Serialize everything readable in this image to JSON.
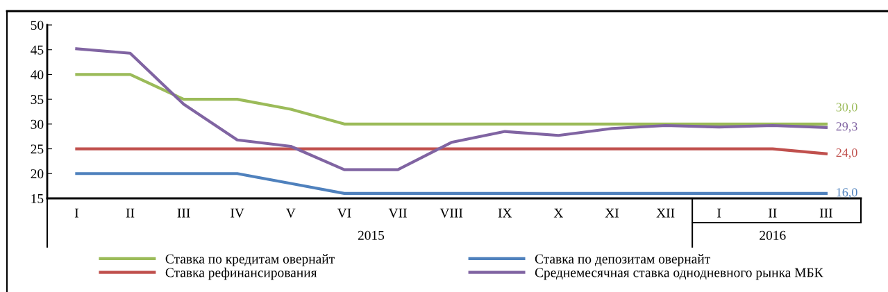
{
  "chart_data": {
    "type": "line",
    "categories": [
      "I",
      "II",
      "III",
      "IV",
      "V",
      "VI",
      "VII",
      "VIII",
      "IX",
      "X",
      "XI",
      "XII",
      "I",
      "II",
      "III"
    ],
    "series": [
      {
        "name": "Ставка по кредитам овернайт",
        "color": "#9bbb59",
        "values": [
          40,
          40,
          35,
          35,
          33,
          30,
          30,
          30,
          30,
          30,
          30,
          30,
          30,
          30,
          30
        ],
        "value_labels": [
          null,
          null,
          null,
          null,
          null,
          null,
          null,
          null,
          null,
          null,
          null,
          null,
          null,
          null,
          "30,0"
        ]
      },
      {
        "name": "Ставка рефинансирования",
        "color": "#c0504d",
        "values": [
          25,
          25,
          25,
          25,
          25,
          25,
          25,
          25,
          25,
          25,
          25,
          25,
          25,
          25,
          24
        ],
        "value_labels": [
          null,
          null,
          null,
          null,
          null,
          null,
          null,
          null,
          null,
          null,
          null,
          null,
          null,
          null,
          "24,0"
        ]
      },
      {
        "name": "Ставка по депозитам овернайт",
        "color": "#4f81bd",
        "values": [
          20,
          20,
          20,
          20,
          18,
          16,
          16,
          16,
          16,
          16,
          16,
          16,
          16,
          16,
          16
        ],
        "value_labels": [
          null,
          null,
          null,
          null,
          null,
          null,
          null,
          null,
          null,
          null,
          null,
          null,
          null,
          null,
          "16,0"
        ]
      },
      {
        "name": "Среднемесячная ставка однодневного рынка МБК",
        "color": "#8064a2",
        "values": [
          45.2,
          44.3,
          34,
          26.8,
          25.5,
          20.8,
          20.8,
          26.3,
          28.5,
          27.7,
          29.1,
          29.7,
          29.4,
          29.7,
          29.3
        ],
        "value_labels": [
          null,
          null,
          null,
          null,
          null,
          null,
          null,
          null,
          null,
          null,
          null,
          null,
          null,
          null,
          "29,3"
        ]
      }
    ],
    "ylim": [
      15,
      50
    ],
    "yticks": [
      15,
      20,
      25,
      30,
      35,
      40,
      45,
      50
    ],
    "annotations": [
      "2015",
      "2016"
    ],
    "legend": "bottom",
    "grid": false,
    "marker": "none",
    "line_style": "solid"
  }
}
